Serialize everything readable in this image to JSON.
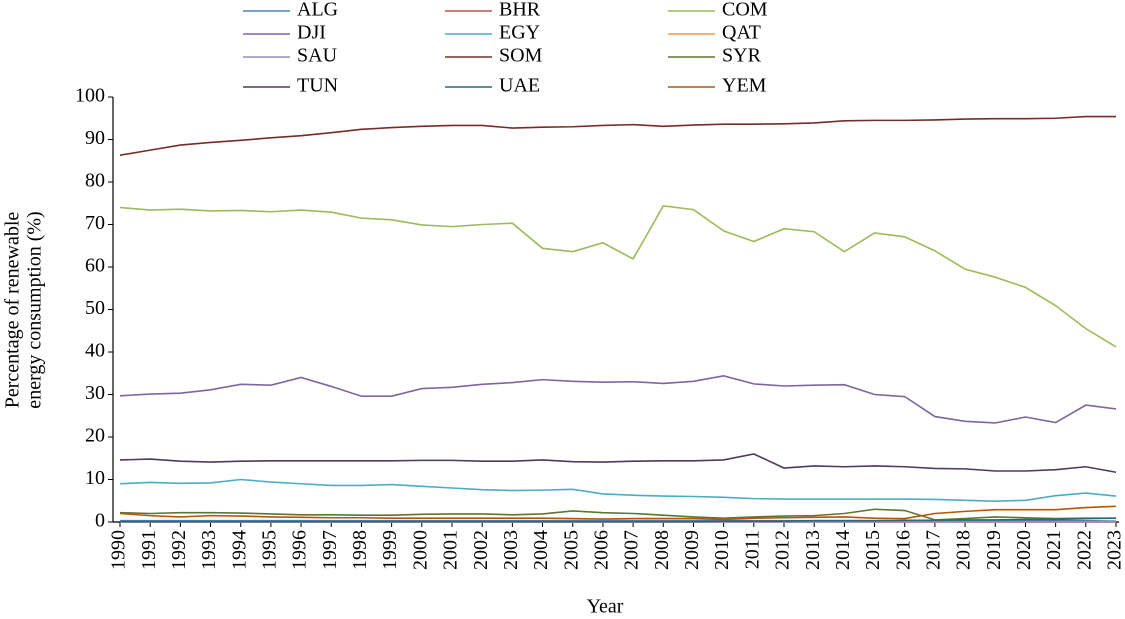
{
  "chart_data": {
    "type": "line",
    "ylabel_lines": [
      "Percentage of renewable",
      "energy consumption (%)"
    ],
    "xlabel": "Year",
    "x": [
      1990,
      1991,
      1992,
      1993,
      1994,
      1995,
      1996,
      1997,
      1998,
      1999,
      2000,
      2001,
      2002,
      2003,
      2004,
      2005,
      2006,
      2007,
      2008,
      2009,
      2010,
      2011,
      2012,
      2013,
      2014,
      2015,
      2016,
      2017,
      2018,
      2019,
      2020,
      2021,
      2022,
      2023
    ],
    "xlim": [
      1990,
      2023
    ],
    "xticks": [
      1990,
      1991,
      1992,
      1993,
      1994,
      1995,
      1996,
      1997,
      1998,
      1999,
      2000,
      2001,
      2002,
      2003,
      2004,
      2005,
      2006,
      2007,
      2008,
      2009,
      2010,
      2011,
      2012,
      2013,
      2014,
      2015,
      2016,
      2017,
      2018,
      2019,
      2020,
      2021,
      2022,
      2023
    ],
    "ylim": [
      0,
      100
    ],
    "yticks": [
      0,
      10,
      20,
      30,
      40,
      50,
      60,
      70,
      80,
      90,
      100
    ],
    "grid": false,
    "legend": "top",
    "series": [
      {
        "name": "ALG",
        "color": "#4f81bd",
        "values": [
          0.3,
          0.3,
          0.3,
          0.3,
          0.3,
          0.3,
          0.3,
          0.3,
          0.3,
          0.3,
          0.3,
          0.3,
          0.3,
          0.3,
          0.3,
          0.3,
          0.3,
          0.3,
          0.3,
          0.3,
          0.3,
          0.3,
          0.3,
          0.3,
          0.3,
          0.3,
          0.3,
          0.3,
          0.3,
          0.3,
          0.3,
          0.3,
          0.3,
          0.2
        ]
      },
      {
        "name": "BHR",
        "color": "#c0504d",
        "values": [
          0,
          0,
          0,
          0,
          0,
          0,
          0,
          0,
          0,
          0,
          0,
          0,
          0,
          0,
          0,
          0,
          0,
          0,
          0,
          0,
          0,
          0,
          0,
          0,
          0,
          0,
          0,
          0,
          0,
          0,
          0,
          0,
          0,
          0
        ]
      },
      {
        "name": "COM",
        "color": "#9bbb59",
        "values": [
          74.0,
          73.4,
          73.6,
          73.2,
          73.3,
          73.0,
          73.4,
          72.9,
          71.5,
          71.1,
          69.9,
          69.5,
          70.0,
          70.3,
          64.4,
          63.6,
          65.7,
          61.9,
          74.4,
          73.5,
          68.5,
          66.0,
          69.0,
          68.3,
          63.6,
          68.0,
          67.1,
          63.8,
          59.5,
          57.6,
          55.2,
          50.9,
          45.5,
          41.2
        ]
      },
      {
        "name": "DJI",
        "color": "#8064a2",
        "values": [
          29.7,
          30.1,
          30.3,
          31.1,
          32.4,
          32.2,
          34.0,
          31.9,
          29.6,
          29.6,
          31.4,
          31.7,
          32.4,
          32.8,
          33.5,
          33.1,
          32.9,
          33.0,
          32.6,
          33.1,
          34.4,
          32.5,
          32.0,
          32.2,
          32.3,
          30.0,
          29.5,
          24.8,
          23.7,
          23.3,
          24.7,
          23.4,
          27.5,
          26.6
        ]
      },
      {
        "name": "EGY",
        "color": "#4bacc6",
        "values": [
          9.0,
          9.3,
          9.1,
          9.2,
          10.0,
          9.4,
          9.0,
          8.6,
          8.6,
          8.8,
          8.4,
          8.0,
          7.6,
          7.4,
          7.5,
          7.7,
          6.6,
          6.3,
          6.1,
          6.0,
          5.8,
          5.5,
          5.4,
          5.4,
          5.4,
          5.4,
          5.4,
          5.3,
          5.1,
          4.9,
          5.1,
          6.2,
          6.8,
          6.1
        ]
      },
      {
        "name": "QAT",
        "color": "#f79646",
        "values": [
          0,
          0,
          0,
          0,
          0,
          0,
          0,
          0,
          0,
          0,
          0,
          0,
          0,
          0,
          0,
          0,
          0,
          0,
          0,
          0,
          0,
          0,
          0,
          0,
          0,
          0,
          0,
          0,
          0,
          0,
          0,
          0,
          0,
          0
        ]
      },
      {
        "name": "SAU",
        "color": "#9a8cc4",
        "values": [
          0,
          0,
          0,
          0,
          0,
          0,
          0,
          0,
          0,
          0,
          0,
          0,
          0,
          0,
          0,
          0,
          0,
          0,
          0,
          0,
          0,
          0,
          0,
          0,
          0,
          0,
          0,
          0,
          0,
          0,
          0,
          0,
          0,
          0
        ]
      },
      {
        "name": "SOM",
        "color": "#772c2a",
        "values": [
          86.3,
          87.5,
          88.7,
          89.3,
          89.8,
          90.4,
          90.9,
          91.6,
          92.4,
          92.8,
          93.1,
          93.3,
          93.3,
          92.7,
          92.9,
          93.0,
          93.3,
          93.5,
          93.1,
          93.4,
          93.6,
          93.6,
          93.7,
          93.9,
          94.4,
          94.5,
          94.5,
          94.6,
          94.8,
          94.9,
          94.9,
          95.0,
          95.4,
          95.4
        ]
      },
      {
        "name": "SYR",
        "color": "#5f7530",
        "values": [
          2.2,
          2.0,
          2.2,
          2.2,
          2.1,
          1.9,
          1.7,
          1.7,
          1.6,
          1.6,
          1.8,
          1.9,
          1.9,
          1.7,
          1.9,
          2.6,
          2.2,
          2.0,
          1.6,
          1.2,
          0.9,
          1.2,
          1.4,
          1.5,
          2.0,
          3.0,
          2.7,
          0.5,
          0.8,
          1.2,
          1.0,
          0.8,
          0.9,
          0.9
        ]
      },
      {
        "name": "TUN",
        "color": "#4d3b62",
        "values": [
          14.6,
          14.8,
          14.3,
          14.1,
          14.3,
          14.4,
          14.4,
          14.4,
          14.4,
          14.4,
          14.5,
          14.5,
          14.3,
          14.3,
          14.6,
          14.2,
          14.1,
          14.3,
          14.4,
          14.4,
          14.6,
          16.0,
          12.7,
          13.2,
          13.0,
          13.2,
          13.0,
          12.6,
          12.5,
          12.0,
          12.0,
          12.3,
          13.0,
          11.7
        ]
      },
      {
        "name": "UAE",
        "color": "#276a7c",
        "values": [
          0.1,
          0.1,
          0.1,
          0.1,
          0.1,
          0.1,
          0.1,
          0.1,
          0.1,
          0.1,
          0.1,
          0.1,
          0.1,
          0.1,
          0.1,
          0.1,
          0.1,
          0.1,
          0.1,
          0.1,
          0.2,
          0.2,
          0.2,
          0.3,
          0.3,
          0.3,
          0.4,
          0.4,
          0.5,
          0.5,
          0.6,
          0.6,
          0.8,
          0.9
        ]
      },
      {
        "name": "YEM",
        "color": "#b65708",
        "values": [
          2.0,
          1.5,
          1.2,
          1.5,
          1.4,
          1.2,
          1.1,
          1.0,
          1.0,
          0.9,
          0.9,
          0.9,
          0.9,
          0.9,
          0.9,
          0.8,
          0.7,
          0.8,
          0.8,
          0.8,
          0.6,
          0.9,
          1.0,
          1.1,
          1.2,
          0.9,
          0.8,
          2.0,
          2.5,
          2.9,
          2.9,
          2.9,
          3.4,
          3.7
        ]
      }
    ]
  }
}
